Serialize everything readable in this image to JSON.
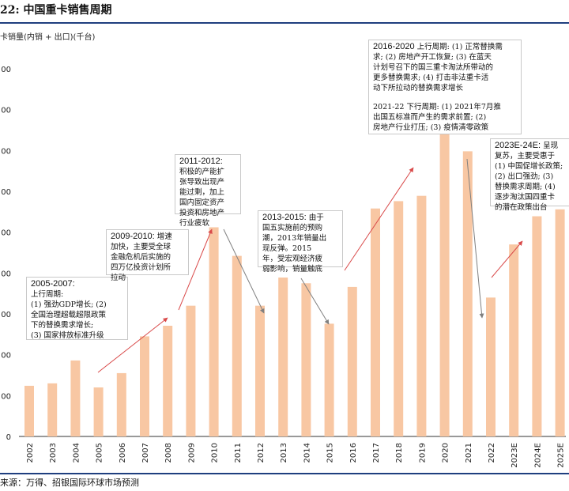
{
  "figure_label": "22: 中国重卡销售周期",
  "source": "来源：万得、招银国际环球市场预测",
  "colors": {
    "bar": "#f8c7a3",
    "arrow_up": "#d94a4a",
    "arrow_down": "#808080",
    "rule": "#1f3f7f"
  },
  "chart_data": {
    "type": "bar",
    "title": "中国重卡销售周期",
    "ylabel": "卡销量(内销 + 出口)(千台)",
    "xlabel": "",
    "ylim": [
      0,
      900
    ],
    "grid": false,
    "y_ticks": [
      {
        "value": 0,
        "label": "0"
      },
      {
        "value": 100,
        "label": "00"
      },
      {
        "value": 200,
        "label": "00"
      },
      {
        "value": 300,
        "label": "00"
      },
      {
        "value": 400,
        "label": "00"
      },
      {
        "value": 500,
        "label": "00"
      },
      {
        "value": 600,
        "label": "00"
      },
      {
        "value": 700,
        "label": "00"
      },
      {
        "value": 800,
        "label": "00"
      },
      {
        "value": 900,
        "label": "00"
      }
    ],
    "categories": [
      "2002",
      "2003",
      "2004",
      "2005",
      "2006",
      "2007",
      "2008",
      "2009",
      "2010",
      "2011",
      "2012",
      "2013",
      "2014",
      "2015",
      "2016",
      "2017",
      "2018",
      "2019",
      "2020",
      "2021",
      "2022",
      "2023E",
      "2024E",
      "2025E"
    ],
    "values": [
      124,
      130,
      186,
      120,
      155,
      245,
      271,
      320,
      512,
      442,
      320,
      389,
      375,
      276,
      366,
      558,
      576,
      589,
      810,
      698,
      340,
      470,
      539,
      556
    ]
  },
  "annotations": [
    {
      "id": "ann-2005-2007",
      "heading": "2005-2007:",
      "lines": [
        "上行周期:",
        "(1) 强劲GDP增长; (2)",
        "全国治理超载超限政策",
        "下的替换需求增长;",
        "(3) 国家排放标准升级"
      ]
    },
    {
      "id": "ann-2009-2010",
      "heading": "2009-2010:",
      "heading_rest": " 增速",
      "lines": [
        "加快，主要受全球",
        "金融危机后实施的",
        "四万亿投资计划所",
        "拉动"
      ]
    },
    {
      "id": "ann-2011-2012",
      "heading": "2011-2012:",
      "lines": [
        "积极的产能扩",
        "张导致出现产",
        "能过剩，加上",
        "国内固定资产",
        "投资和房地产",
        "行业疲软"
      ]
    },
    {
      "id": "ann-2013-2015",
      "heading": "2013-2015:",
      "heading_rest": " 由于",
      "lines": [
        "国五实施前的预购",
        "潮，2013年销量出",
        "现反弹。2015",
        "年，受宏观经济疲",
        "弱影响，销量触底"
      ]
    },
    {
      "id": "ann-2016-2020",
      "heading": "2016-2020",
      "heading_rest": " 上行周期: (1) 正常替换需",
      "lines": [
        "求; (2) 房地产开工恢复; (3) 在蓝天",
        "计划号召下的国三重卡淘汰所带动的",
        "更多替换需求; (4) 打击非法重卡活",
        "动下所拉动的替换需求增长"
      ],
      "lines2": [
        "2021-22 下行周期: (1) 2021年7月推",
        "出国五标准而产生的需求前置; (2)",
        "房地产行业打压; (3) 疫情清零政策"
      ]
    },
    {
      "id": "ann-2023-2025",
      "heading": "2023E-24E:",
      "heading_rest": " 呈现",
      "lines": [
        "复苏，主要受惠于",
        "(1) 中国促增长政策;",
        "(2) 出口强劲; (3)",
        "替换需求周期; (4)",
        "逐步淘汰国四重卡",
        "的潜在政策出台"
      ]
    }
  ]
}
